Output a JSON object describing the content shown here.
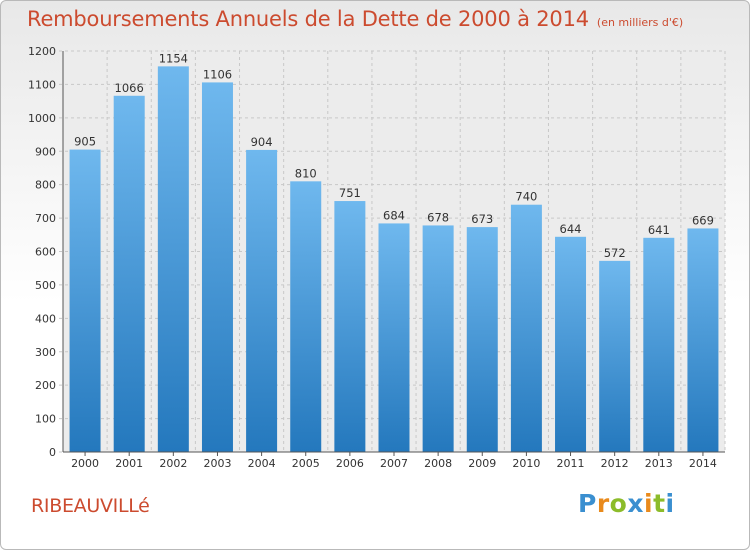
{
  "chart_data": {
    "type": "bar",
    "title": "Remboursements Annuels de la Dette de 2000 à 2014",
    "subtitle": "(en milliers d'€)",
    "xlabel": "",
    "ylabel": "",
    "categories": [
      "2000",
      "2001",
      "2002",
      "2003",
      "2004",
      "2005",
      "2006",
      "2007",
      "2008",
      "2009",
      "2010",
      "2011",
      "2012",
      "2013",
      "2014"
    ],
    "values": [
      905,
      1066,
      1154,
      1106,
      904,
      810,
      751,
      684,
      678,
      673,
      740,
      644,
      572,
      641,
      669
    ],
    "ylim": [
      0,
      1200
    ],
    "yticks": [
      0,
      100,
      200,
      300,
      400,
      500,
      600,
      700,
      800,
      900,
      1000,
      1100,
      1200
    ],
    "grid": true,
    "bar_color_top": "#6fb8ee",
    "bar_color_bottom": "#2478bd"
  },
  "footer": {
    "city": "RIBEAUVILLé",
    "brand_letters": [
      {
        "ch": "P",
        "color": "#3a8fd0"
      },
      {
        "ch": "r",
        "color": "#e98a1c"
      },
      {
        "ch": "o",
        "color": "#8cbc2a"
      },
      {
        "ch": "x",
        "color": "#3a8fd0"
      },
      {
        "ch": "i",
        "color": "#e98a1c"
      },
      {
        "ch": "t",
        "color": "#8cbc2a"
      },
      {
        "ch": "i",
        "color": "#3a8fd0"
      }
    ]
  },
  "colors": {
    "title": "#cc4b2f",
    "grid": "#c8c8c8",
    "axis": "#555555"
  }
}
